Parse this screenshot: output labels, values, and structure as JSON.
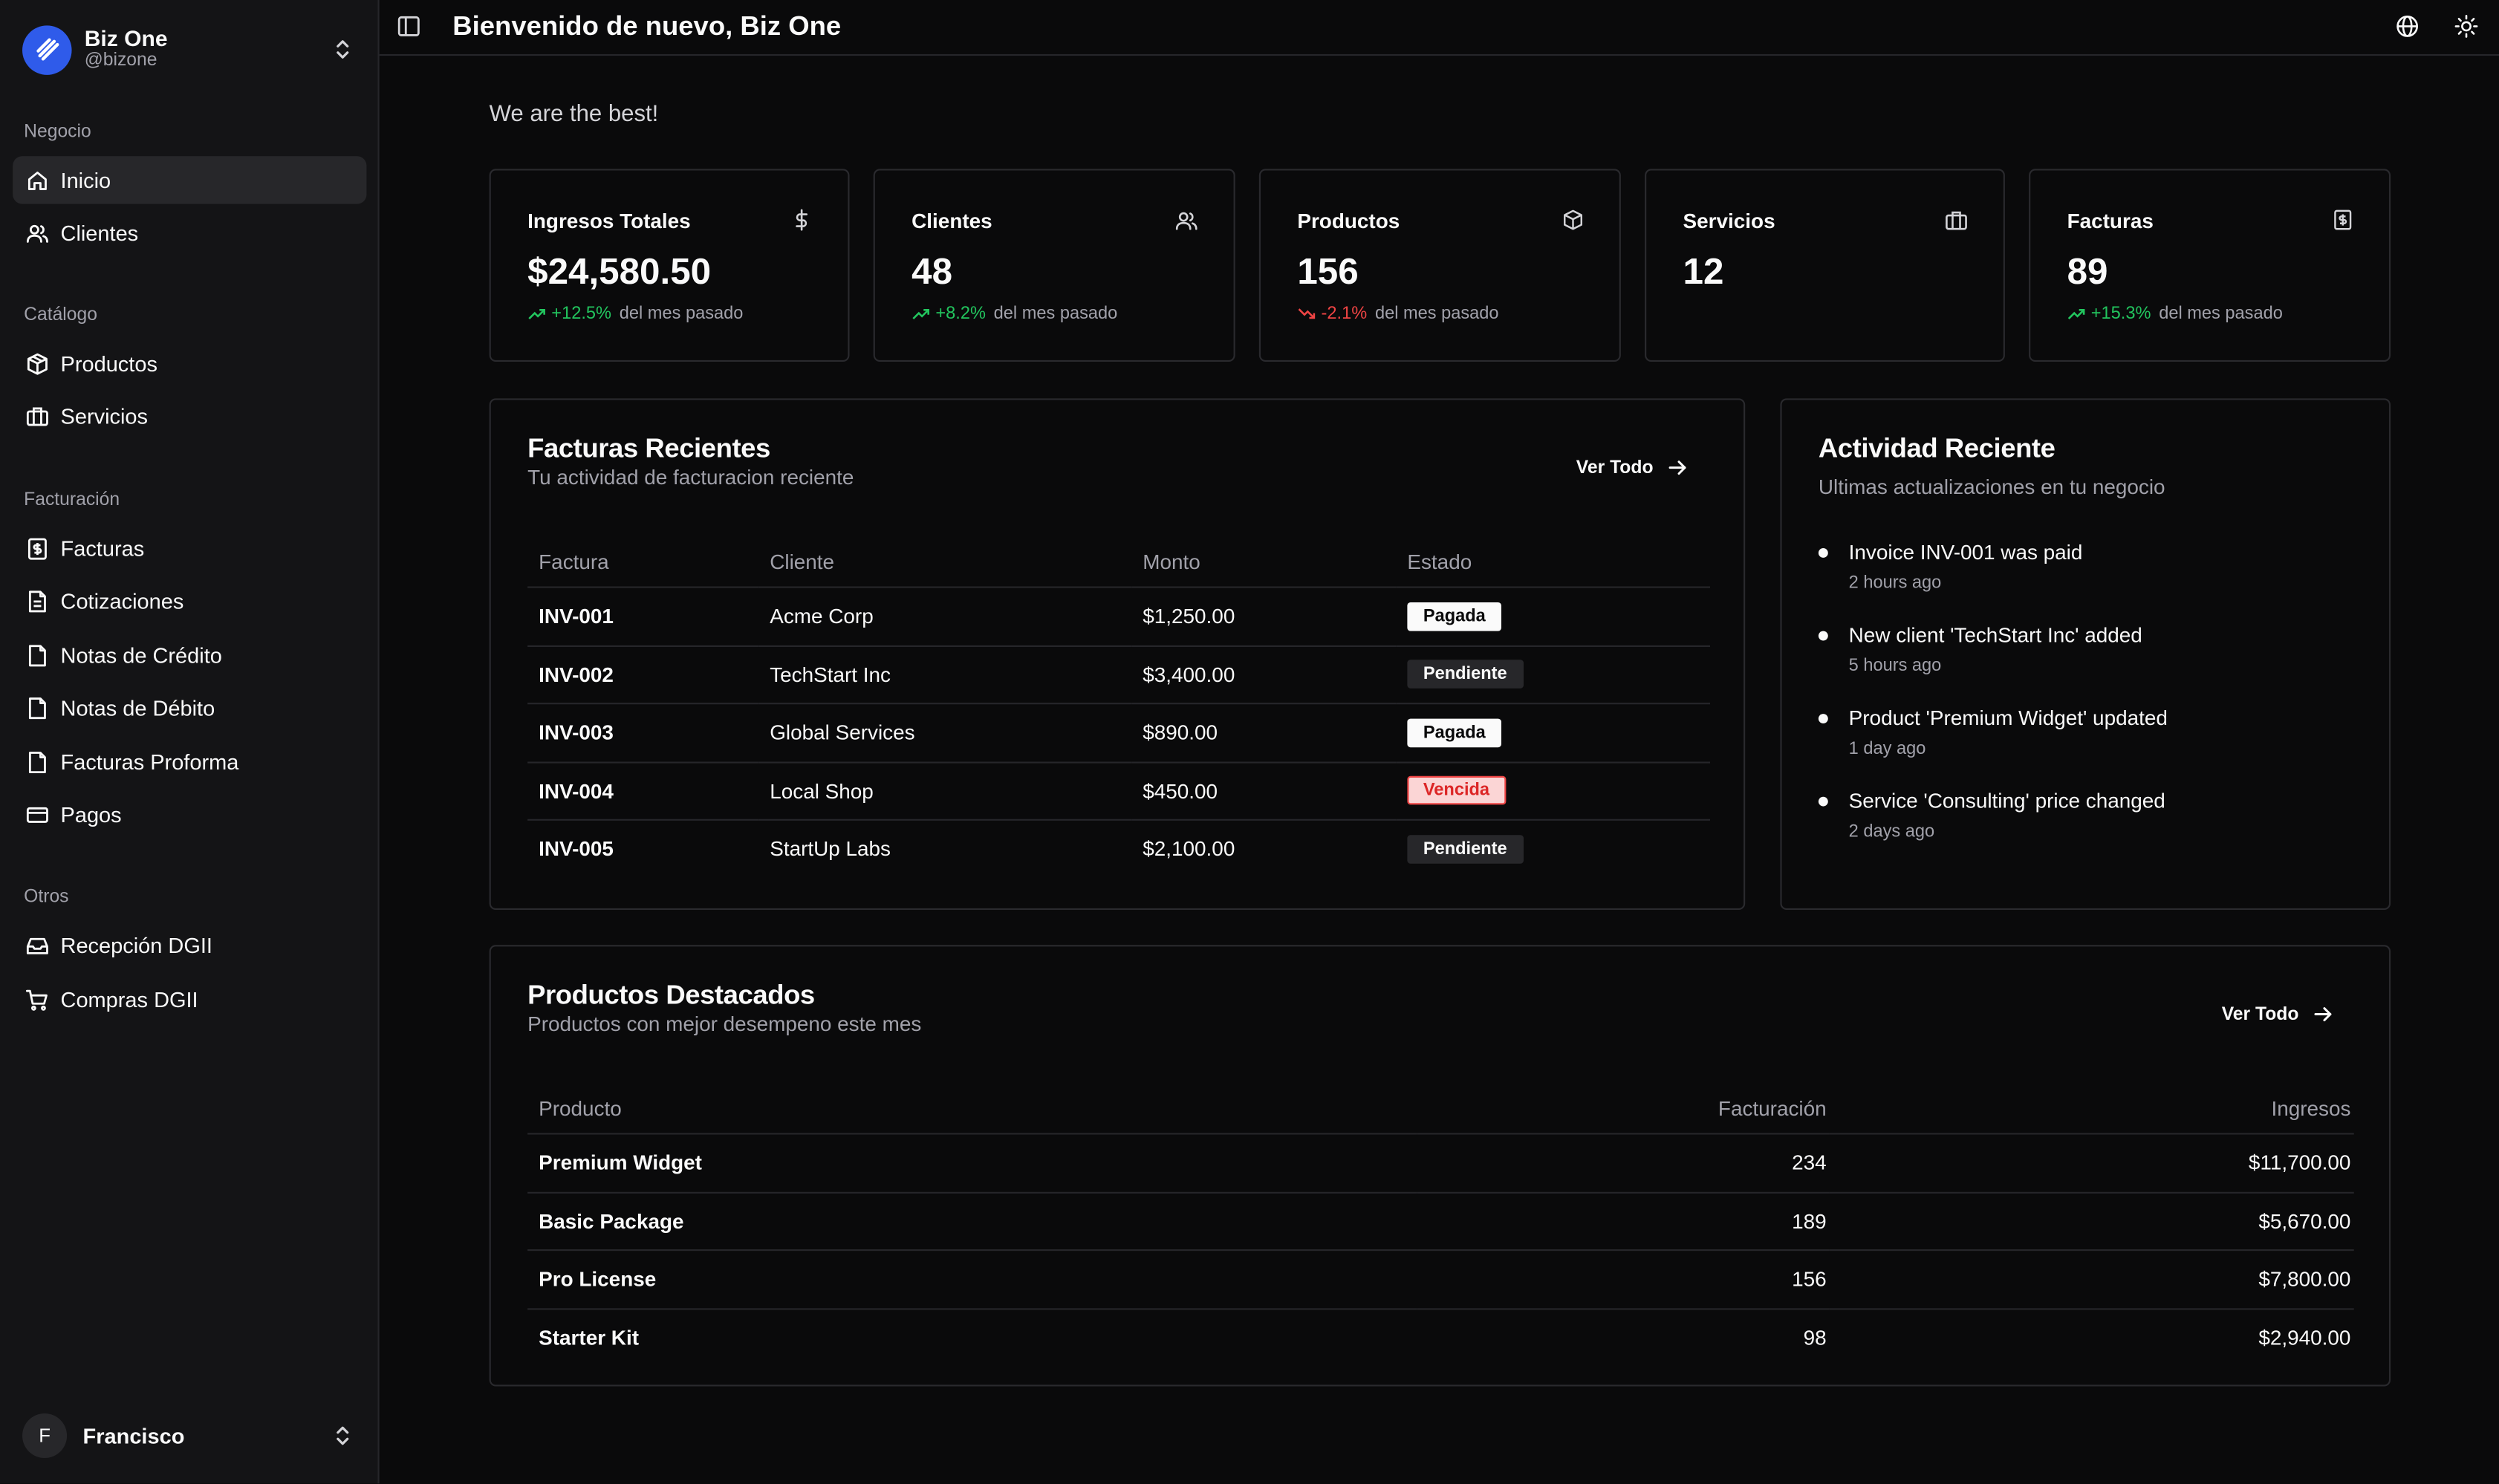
{
  "sidebar": {
    "brand": {
      "name": "Biz One",
      "handle": "@bizone"
    },
    "sections": [
      {
        "label": "Negocio",
        "items": [
          {
            "label": "Inicio",
            "icon": "home-icon",
            "active": true
          },
          {
            "label": "Clientes",
            "icon": "users-icon"
          }
        ]
      },
      {
        "label": "Catálogo",
        "items": [
          {
            "label": "Productos",
            "icon": "package-icon"
          },
          {
            "label": "Servicios",
            "icon": "briefcase-icon"
          }
        ]
      },
      {
        "label": "Facturación",
        "items": [
          {
            "label": "Facturas",
            "icon": "receipt-icon"
          },
          {
            "label": "Cotizaciones",
            "icon": "file-icon"
          },
          {
            "label": "Notas de Crédito",
            "icon": "file-icon"
          },
          {
            "label": "Notas de Débito",
            "icon": "file-icon"
          },
          {
            "label": "Facturas Proforma",
            "icon": "file-icon"
          },
          {
            "label": "Pagos",
            "icon": "credit-card-icon"
          }
        ]
      },
      {
        "label": "Otros",
        "items": [
          {
            "label": "Recepción DGII",
            "icon": "inbox-icon"
          },
          {
            "label": "Compras DGII",
            "icon": "cart-icon"
          }
        ]
      }
    ],
    "user": {
      "initial": "F",
      "name": "Francisco"
    }
  },
  "header": {
    "title": "Bienvenido de nuevo, Biz One"
  },
  "tagline": "We are the best!",
  "stats": [
    {
      "label": "Ingresos Totales",
      "value": "$24,580.50",
      "delta": "+12.5%",
      "trend": "up",
      "suffix": "del mes pasado",
      "icon": "dollar-icon"
    },
    {
      "label": "Clientes",
      "value": "48",
      "delta": "+8.2%",
      "trend": "up",
      "suffix": "del mes pasado",
      "icon": "users-icon"
    },
    {
      "label": "Productos",
      "value": "156",
      "delta": "-2.1%",
      "trend": "down",
      "suffix": "del mes pasado",
      "icon": "package-icon"
    },
    {
      "label": "Servicios",
      "value": "12",
      "icon": "briefcase-icon"
    },
    {
      "label": "Facturas",
      "value": "89",
      "delta": "+15.3%",
      "trend": "up",
      "suffix": "del mes pasado",
      "icon": "receipt-icon"
    }
  ],
  "invoices": {
    "title": "Facturas Recientes",
    "subtitle": "Tu actividad de facturacion reciente",
    "view_all": "Ver Todo",
    "columns": [
      "Factura",
      "Cliente",
      "Monto",
      "Estado"
    ],
    "rows": [
      {
        "id": "INV-001",
        "client": "Acme Corp",
        "amount": "$1,250.00",
        "status": "Pagada",
        "kind": "paid"
      },
      {
        "id": "INV-002",
        "client": "TechStart Inc",
        "amount": "$3,400.00",
        "status": "Pendiente",
        "kind": "pend"
      },
      {
        "id": "INV-003",
        "client": "Global Services",
        "amount": "$890.00",
        "status": "Pagada",
        "kind": "paid"
      },
      {
        "id": "INV-004",
        "client": "Local Shop",
        "amount": "$450.00",
        "status": "Vencida",
        "kind": "over"
      },
      {
        "id": "INV-005",
        "client": "StartUp Labs",
        "amount": "$2,100.00",
        "status": "Pendiente",
        "kind": "pend"
      }
    ]
  },
  "activity": {
    "title": "Actividad Reciente",
    "subtitle": "Ultimas actualizaciones en tu negocio",
    "items": [
      {
        "text": "Invoice INV-001 was paid",
        "time": "2 hours ago"
      },
      {
        "text": "New client 'TechStart Inc' added",
        "time": "5 hours ago"
      },
      {
        "text": "Product 'Premium Widget' updated",
        "time": "1 day ago"
      },
      {
        "text": "Service 'Consulting' price changed",
        "time": "2 days ago"
      }
    ]
  },
  "products": {
    "title": "Productos Destacados",
    "subtitle": "Productos con mejor desempeno este mes",
    "view_all": "Ver Todo",
    "columns": [
      "Producto",
      "Facturación",
      "Ingresos"
    ],
    "rows": [
      {
        "name": "Premium Widget",
        "billing": "234",
        "revenue": "$11,700.00"
      },
      {
        "name": "Basic Package",
        "billing": "189",
        "revenue": "$5,670.00"
      },
      {
        "name": "Pro License",
        "billing": "156",
        "revenue": "$7,800.00"
      },
      {
        "name": "Starter Kit",
        "billing": "98",
        "revenue": "$2,940.00"
      }
    ]
  }
}
